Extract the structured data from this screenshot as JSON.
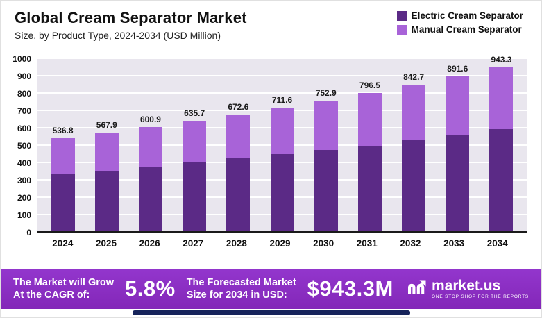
{
  "header": {
    "title": "Global Cream Separator Market",
    "subtitle": "Size, by Product Type, 2024-2034 (USD Million)"
  },
  "chart_data": {
    "type": "bar",
    "stacked": true,
    "title": "Global Cream Separator Market",
    "subtitle": "Size, by Product Type, 2024-2034 (USD Million)",
    "categories": [
      "2024",
      "2025",
      "2026",
      "2027",
      "2028",
      "2029",
      "2030",
      "2031",
      "2032",
      "2033",
      "2034"
    ],
    "series": [
      {
        "name": "Electric Cream Separator",
        "color": "#5b2a86",
        "values": [
          330,
          350,
          372,
          395,
          420,
          443,
          468,
          493,
          524,
          557,
          590
        ]
      },
      {
        "name": "Manual Cream Separator",
        "color": "#a863d8",
        "values": [
          206.8,
          217.9,
          228.9,
          240.7,
          252.6,
          268.6,
          284.9,
          303.5,
          318.7,
          334.6,
          353.3
        ]
      }
    ],
    "totals": [
      536.8,
      567.9,
      600.9,
      635.7,
      672.6,
      711.6,
      752.9,
      796.5,
      842.7,
      891.6,
      943.3
    ],
    "ylim": [
      0,
      1000
    ],
    "yticks": [
      0,
      100,
      200,
      300,
      400,
      500,
      600,
      700,
      800,
      900,
      1000
    ],
    "legend_position": "top-right",
    "grid": true
  },
  "banner": {
    "left_line1": "The Market will Grow",
    "left_line2": "At the CAGR of:",
    "cagr": "5.8%",
    "mid_line1": "The Forecasted Market",
    "mid_line2": "Size for 2034 in USD:",
    "forecast_size": "$943.3M",
    "brand": "market.us",
    "tagline": "ONE STOP SHOP FOR THE REPORTS"
  }
}
